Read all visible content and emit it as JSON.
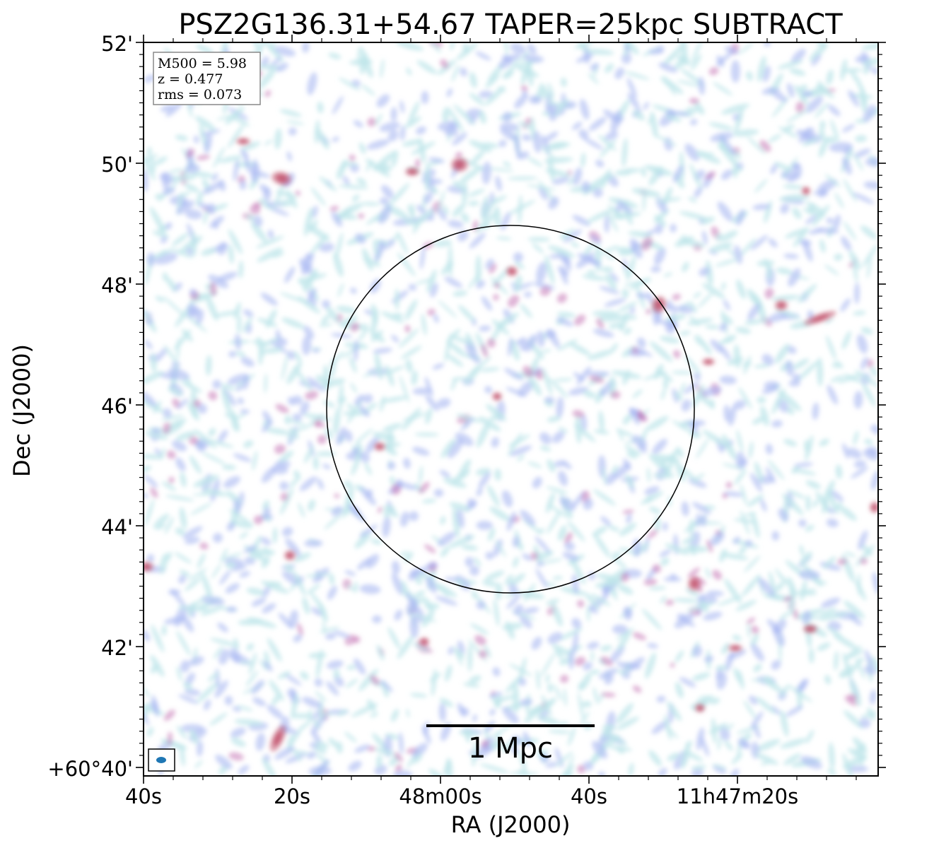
{
  "chart_data": {
    "type": "heatmap",
    "title": "PSZ2G136.31+54.67 TAPER=25kpc SUBTRACT",
    "xlabel": "RA (J2000)",
    "ylabel": "Dec (J2000)",
    "x_ticks": [
      "40s",
      "20s",
      "48m00s",
      "40s",
      "11h47m20s"
    ],
    "y_ticks": [
      "52'",
      "50'",
      "48'",
      "46'",
      "44'",
      "42'",
      "+60°40'"
    ],
    "info_box": [
      "M500 = 5.98",
      "z = 0.477",
      "rms = 0.073"
    ],
    "scale_bar_label": "1 Mpc",
    "colors": {
      "low": "#bfe6ea",
      "mid": "#a9b8f2",
      "high": "#c26bb0",
      "peak": "#c0506a",
      "beam": "#1f77b4"
    },
    "circle": true
  }
}
